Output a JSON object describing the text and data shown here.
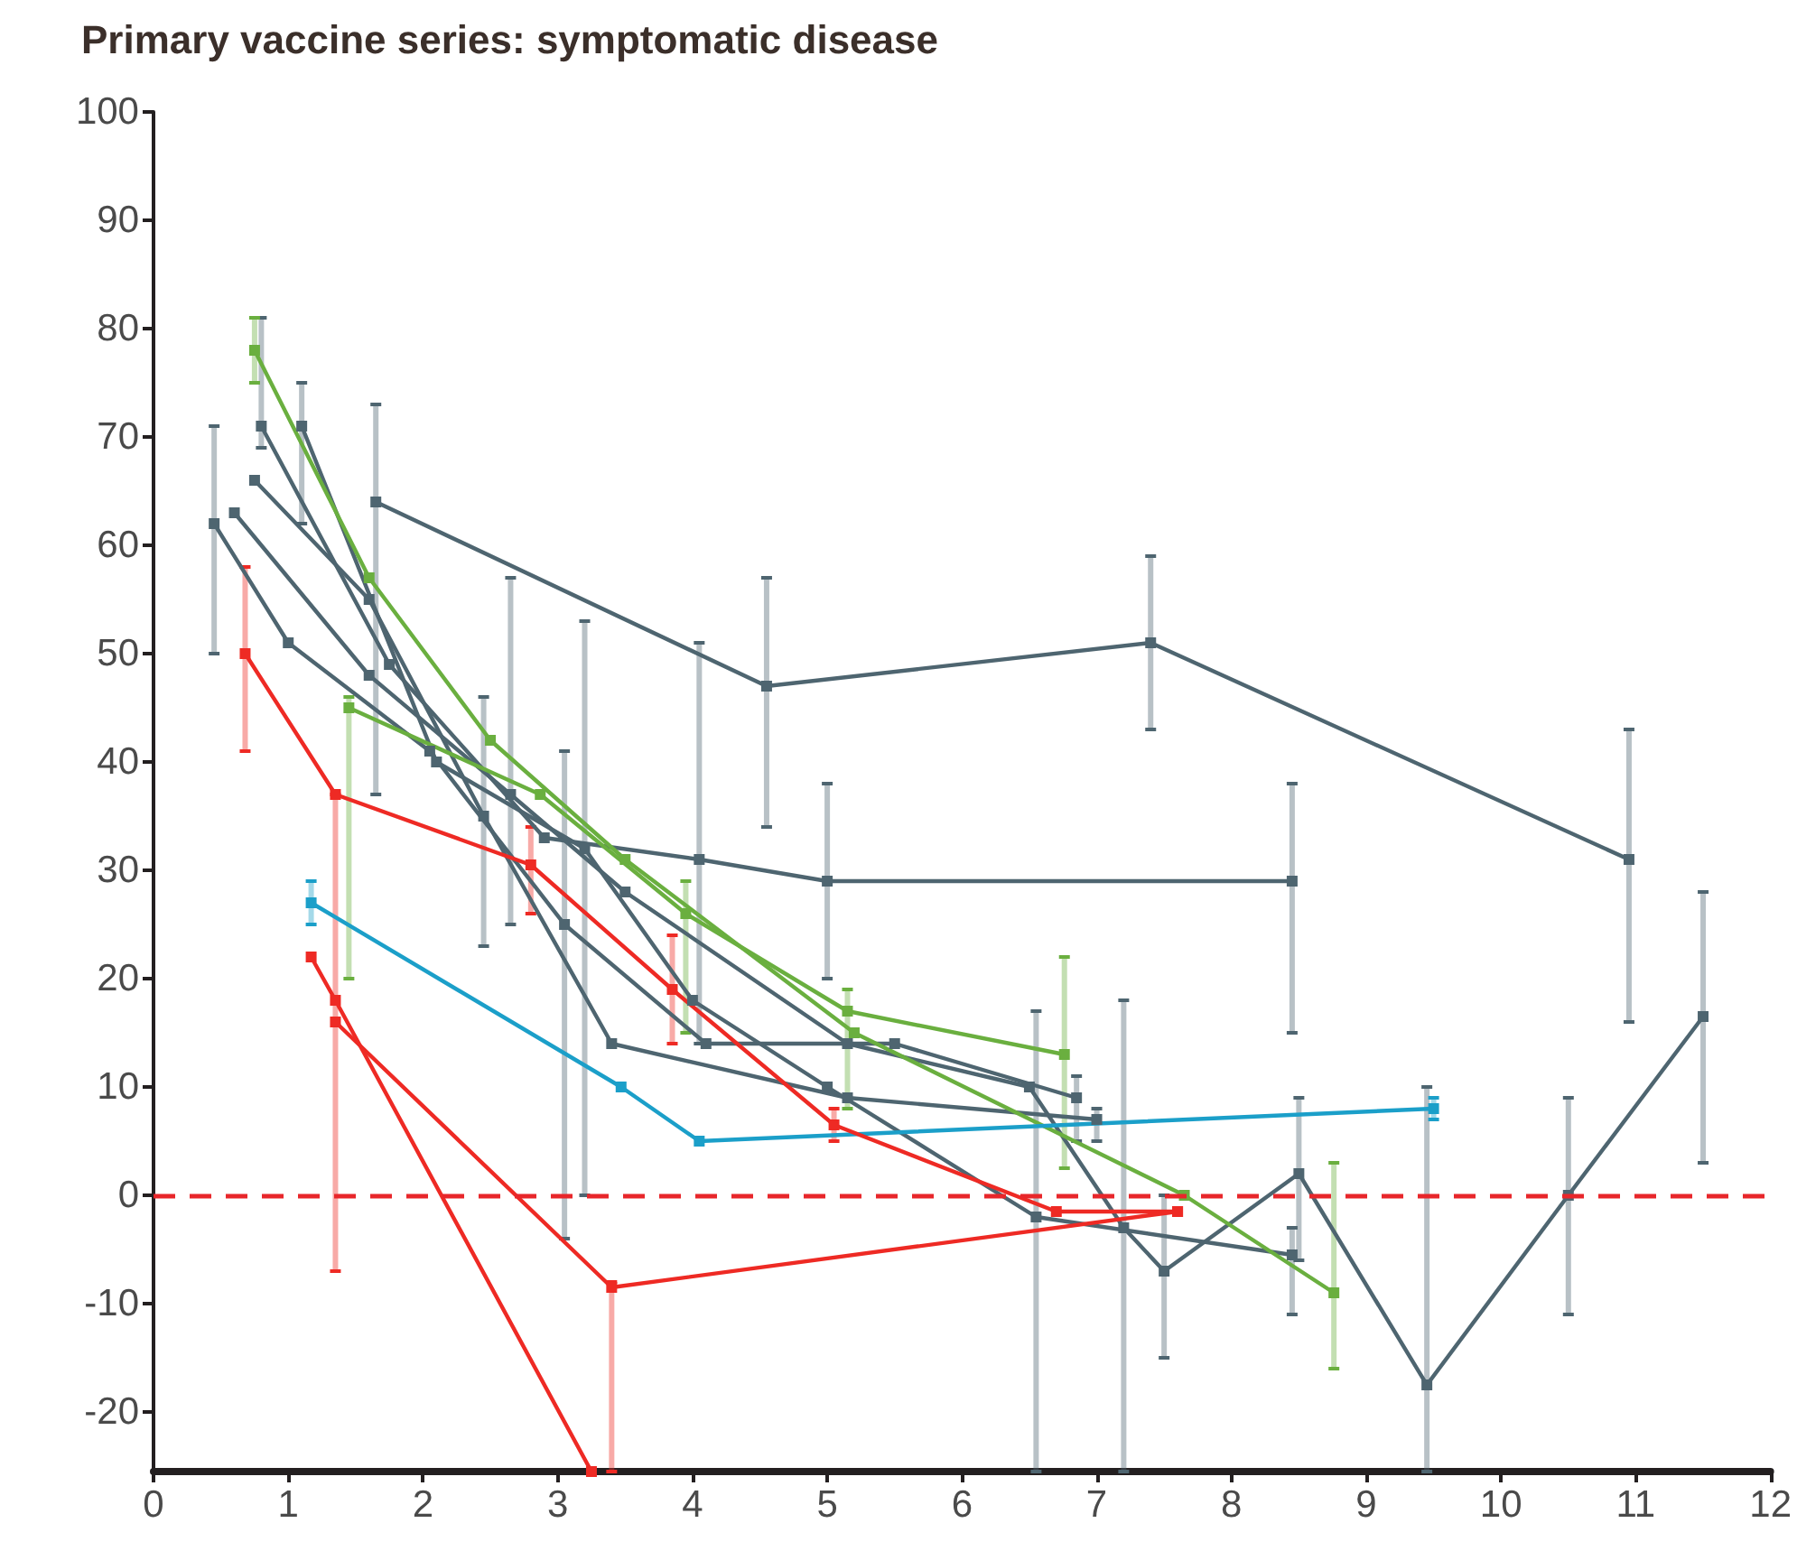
{
  "chart_data": {
    "type": "line",
    "title": "Primary vaccine series: symptomatic disease",
    "xlim": [
      0,
      12
    ],
    "xticks": [
      0,
      1,
      2,
      3,
      4,
      5,
      6,
      7,
      8,
      9,
      10,
      11,
      12
    ],
    "ylim": [
      -25.5,
      100
    ],
    "yticks": [
      -20,
      -10,
      0,
      10,
      20,
      30,
      40,
      50,
      60,
      70,
      80,
      90,
      100
    ],
    "grid": false,
    "marker": "square",
    "line_style": "solid",
    "ref_lines": [
      {
        "axis": "y",
        "value": 0,
        "color": "#e8262a",
        "line_style": "dashed"
      }
    ],
    "series": [
      {
        "color": "#4e6570",
        "x": [
          1.65,
          4.55,
          7.4,
          10.95
        ],
        "values": [
          64,
          47,
          51,
          31
        ],
        "errors": [
          [
            37,
            73
          ],
          [
            34,
            57
          ],
          [
            43,
            59
          ],
          [
            16,
            43
          ]
        ]
      },
      {
        "color": "#4e6570",
        "x": [
          0.45,
          1.0,
          2.05,
          3.05,
          4.1,
          5.5,
          6.85
        ],
        "values": [
          62,
          51,
          41,
          25,
          14,
          14,
          9
        ],
        "errors": [
          [
            50,
            71
          ],
          null,
          null,
          [
            -4,
            41
          ],
          null,
          null,
          [
            5,
            11
          ]
        ]
      },
      {
        "color": "#4e6570",
        "x": [
          0.6,
          1.6,
          2.65,
          3.5,
          5.15,
          6.5,
          7.2,
          7.5,
          8.5,
          9.45,
          10.5,
          11.5
        ],
        "values": [
          63,
          48,
          37,
          28,
          14,
          10,
          -3,
          -7,
          2,
          -17.5,
          0,
          16.5
        ],
        "errors": [
          null,
          null,
          [
            25,
            57
          ],
          null,
          null,
          null,
          [
            -25.5,
            18
          ],
          [
            -15,
            0
          ],
          [
            -6,
            9
          ],
          [
            -25.5,
            10
          ],
          [
            -11,
            9
          ],
          [
            3,
            28
          ]
        ]
      },
      {
        "color": "#4e6570",
        "x": [
          0.8,
          1.75,
          2.9,
          4.05,
          5.0,
          8.45
        ],
        "values": [
          71,
          49,
          33,
          31,
          29,
          29
        ],
        "errors": [
          [
            69,
            81
          ],
          null,
          null,
          [
            14,
            51
          ],
          [
            20,
            38
          ],
          [
            15,
            38
          ]
        ]
      },
      {
        "color": "#4e6570",
        "x": [
          0.75,
          1.6,
          2.45,
          3.4,
          5.15,
          7.0
        ],
        "values": [
          66,
          55,
          35,
          14,
          9,
          7
        ],
        "errors": [
          null,
          null,
          [
            23,
            46
          ],
          null,
          null,
          [
            5,
            8
          ]
        ]
      },
      {
        "color": "#4e6570",
        "x": [
          1.1,
          2.1,
          3.2,
          4.0,
          5.0,
          6.55,
          8.45
        ],
        "values": [
          71,
          40,
          32,
          18,
          10,
          -2,
          -5.5
        ],
        "errors": [
          [
            62,
            75
          ],
          null,
          [
            0,
            53
          ],
          null,
          null,
          [
            -25.5,
            17
          ],
          [
            -11,
            -3
          ]
        ]
      },
      {
        "color": "#6aaf3f",
        "x": [
          0.75,
          1.6,
          2.5,
          3.5,
          5.2,
          7.65,
          8.76
        ],
        "values": [
          78,
          57,
          42,
          31,
          15,
          0,
          -9
        ],
        "errors": [
          [
            75,
            81
          ],
          null,
          null,
          null,
          null,
          null,
          [
            -16,
            3
          ]
        ]
      },
      {
        "color": "#6aaf3f",
        "x": [
          1.45,
          2.87,
          3.95,
          5.15,
          6.76
        ],
        "values": [
          45,
          37,
          26,
          17,
          13
        ],
        "errors": [
          [
            20,
            46
          ],
          null,
          [
            15,
            29
          ],
          [
            8,
            19
          ],
          [
            2.5,
            22
          ]
        ]
      },
      {
        "color": "#1b9fc9",
        "x": [
          1.17,
          3.47,
          4.05,
          9.5
        ],
        "values": [
          27,
          10,
          5,
          8
        ],
        "errors": [
          [
            25,
            29
          ],
          null,
          null,
          [
            7,
            9
          ]
        ]
      },
      {
        "color": "#ee2a24",
        "x": [
          0.68,
          1.35,
          2.8,
          3.85,
          5.05,
          6.7,
          7.6
        ],
        "values": [
          50,
          37,
          30.5,
          19,
          6.5,
          -1.5,
          -1.5
        ],
        "errors": [
          [
            41,
            58
          ],
          null,
          [
            26,
            34
          ],
          [
            14,
            24
          ],
          [
            5,
            8
          ],
          null,
          null
        ]
      },
      {
        "color": "#ee2a24",
        "x": [
          1.35,
          3.4,
          7.6
        ],
        "values": [
          16,
          -8.5,
          -1.5
        ],
        "errors": [
          [
            -7,
            37
          ],
          [
            -25.5,
            -8
          ],
          null
        ]
      },
      {
        "color": "#ee2a24",
        "x": [
          1.17,
          1.35,
          3.25
        ],
        "values": [
          22,
          18,
          -25.5
        ]
      }
    ]
  }
}
